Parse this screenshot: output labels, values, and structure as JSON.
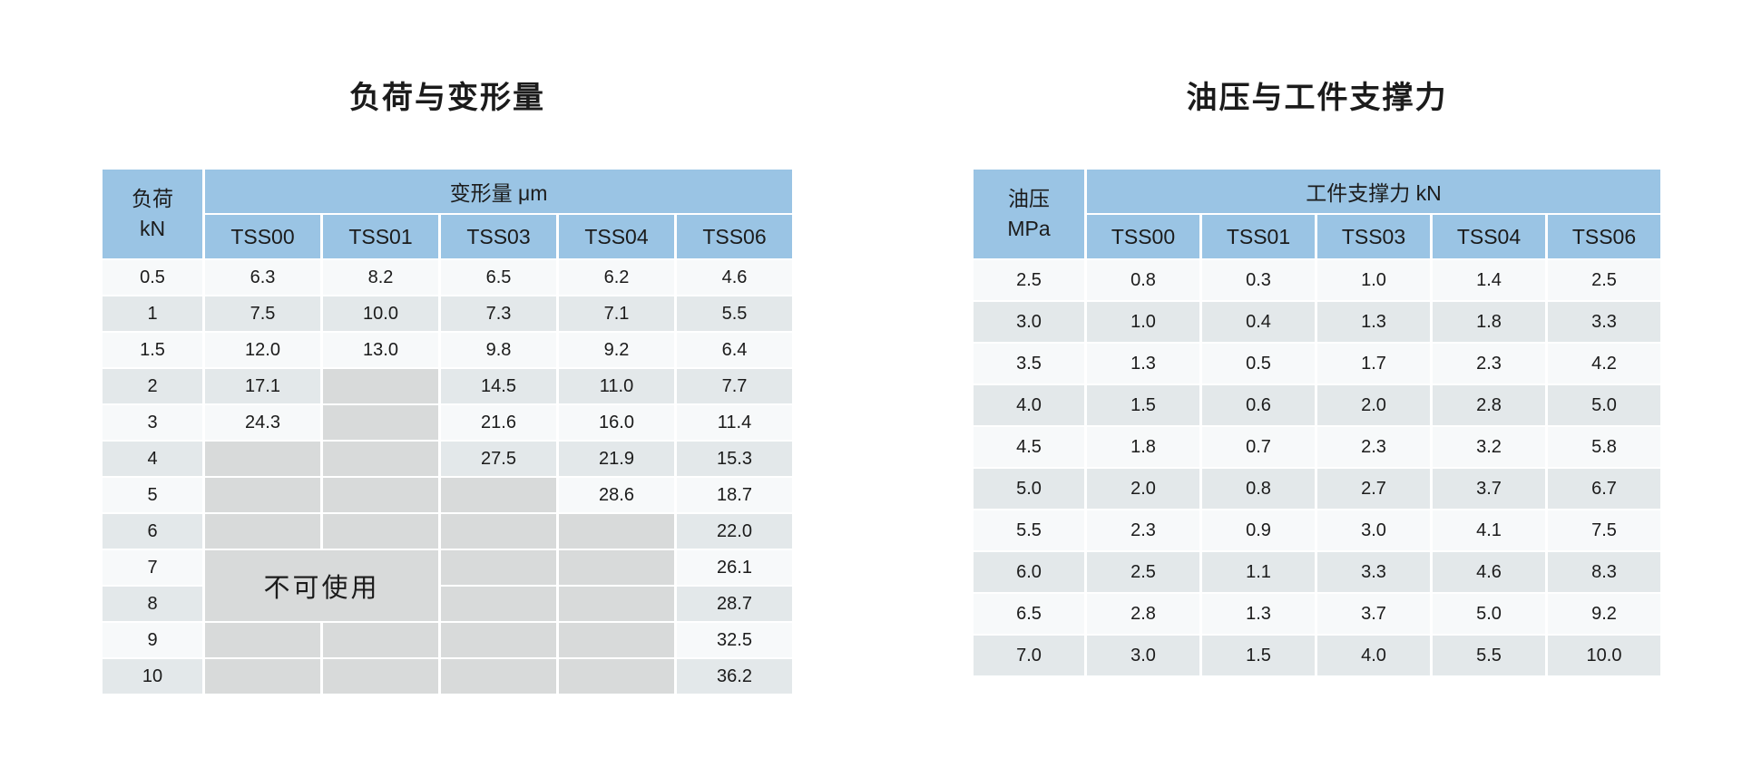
{
  "colors": {
    "header_blue": "#9AC4E4",
    "row_light": "#F7F9FA",
    "row_stripe": "#E3E8EA",
    "unavailable_gray": "#D8DADA",
    "page_background": "#FFFFFF"
  },
  "left_table": {
    "title": "负荷与变形量",
    "row_header_line1": "负荷",
    "row_header_line2": "kN",
    "group_header": "变形量 μm",
    "columns": [
      "TSS00",
      "TSS01",
      "TSS03",
      "TSS04",
      "TSS06"
    ],
    "unusable_label": "不可使用",
    "rows": [
      {
        "load": "0.5",
        "values": [
          "6.3",
          "8.2",
          "6.5",
          "6.2",
          "4.6"
        ]
      },
      {
        "load": "1",
        "values": [
          "7.5",
          "10.0",
          "7.3",
          "7.1",
          "5.5"
        ]
      },
      {
        "load": "1.5",
        "values": [
          "12.0",
          "13.0",
          "9.8",
          "9.2",
          "6.4"
        ]
      },
      {
        "load": "2",
        "values": [
          "17.1",
          "",
          "14.5",
          "11.0",
          "7.7"
        ]
      },
      {
        "load": "3",
        "values": [
          "24.3",
          "",
          "21.6",
          "16.0",
          "11.4"
        ]
      },
      {
        "load": "4",
        "values": [
          "",
          "",
          "27.5",
          "21.9",
          "15.3"
        ]
      },
      {
        "load": "5",
        "values": [
          "",
          "",
          "",
          "28.6",
          "18.7"
        ]
      },
      {
        "load": "6",
        "values": [
          "",
          "",
          "",
          "",
          "22.0"
        ]
      },
      {
        "load": "7",
        "values": [
          "",
          "",
          "",
          "",
          "26.1"
        ]
      },
      {
        "load": "8",
        "values": [
          "",
          "",
          "",
          "",
          "28.7"
        ]
      },
      {
        "load": "9",
        "values": [
          "",
          "",
          "",
          "",
          "32.5"
        ]
      },
      {
        "load": "10",
        "values": [
          "",
          "",
          "",
          "",
          "36.2"
        ]
      }
    ]
  },
  "right_table": {
    "title": "油压与工件支撑力",
    "row_header_line1": "油压",
    "row_header_line2": "MPa",
    "group_header": "工件支撑力 kN",
    "columns": [
      "TSS00",
      "TSS01",
      "TSS03",
      "TSS04",
      "TSS06"
    ],
    "rows": [
      {
        "pressure": "2.5",
        "values": [
          "0.8",
          "0.3",
          "1.0",
          "1.4",
          "2.5"
        ]
      },
      {
        "pressure": "3.0",
        "values": [
          "1.0",
          "0.4",
          "1.3",
          "1.8",
          "3.3"
        ]
      },
      {
        "pressure": "3.5",
        "values": [
          "1.3",
          "0.5",
          "1.7",
          "2.3",
          "4.2"
        ]
      },
      {
        "pressure": "4.0",
        "values": [
          "1.5",
          "0.6",
          "2.0",
          "2.8",
          "5.0"
        ]
      },
      {
        "pressure": "4.5",
        "values": [
          "1.8",
          "0.7",
          "2.3",
          "3.2",
          "5.8"
        ]
      },
      {
        "pressure": "5.0",
        "values": [
          "2.0",
          "0.8",
          "2.7",
          "3.7",
          "6.7"
        ]
      },
      {
        "pressure": "5.5",
        "values": [
          "2.3",
          "0.9",
          "3.0",
          "4.1",
          "7.5"
        ]
      },
      {
        "pressure": "6.0",
        "values": [
          "2.5",
          "1.1",
          "3.3",
          "4.6",
          "8.3"
        ]
      },
      {
        "pressure": "6.5",
        "values": [
          "2.8",
          "1.3",
          "3.7",
          "5.0",
          "9.2"
        ]
      },
      {
        "pressure": "7.0",
        "values": [
          "3.0",
          "1.5",
          "4.0",
          "5.5",
          "10.0"
        ]
      }
    ]
  }
}
